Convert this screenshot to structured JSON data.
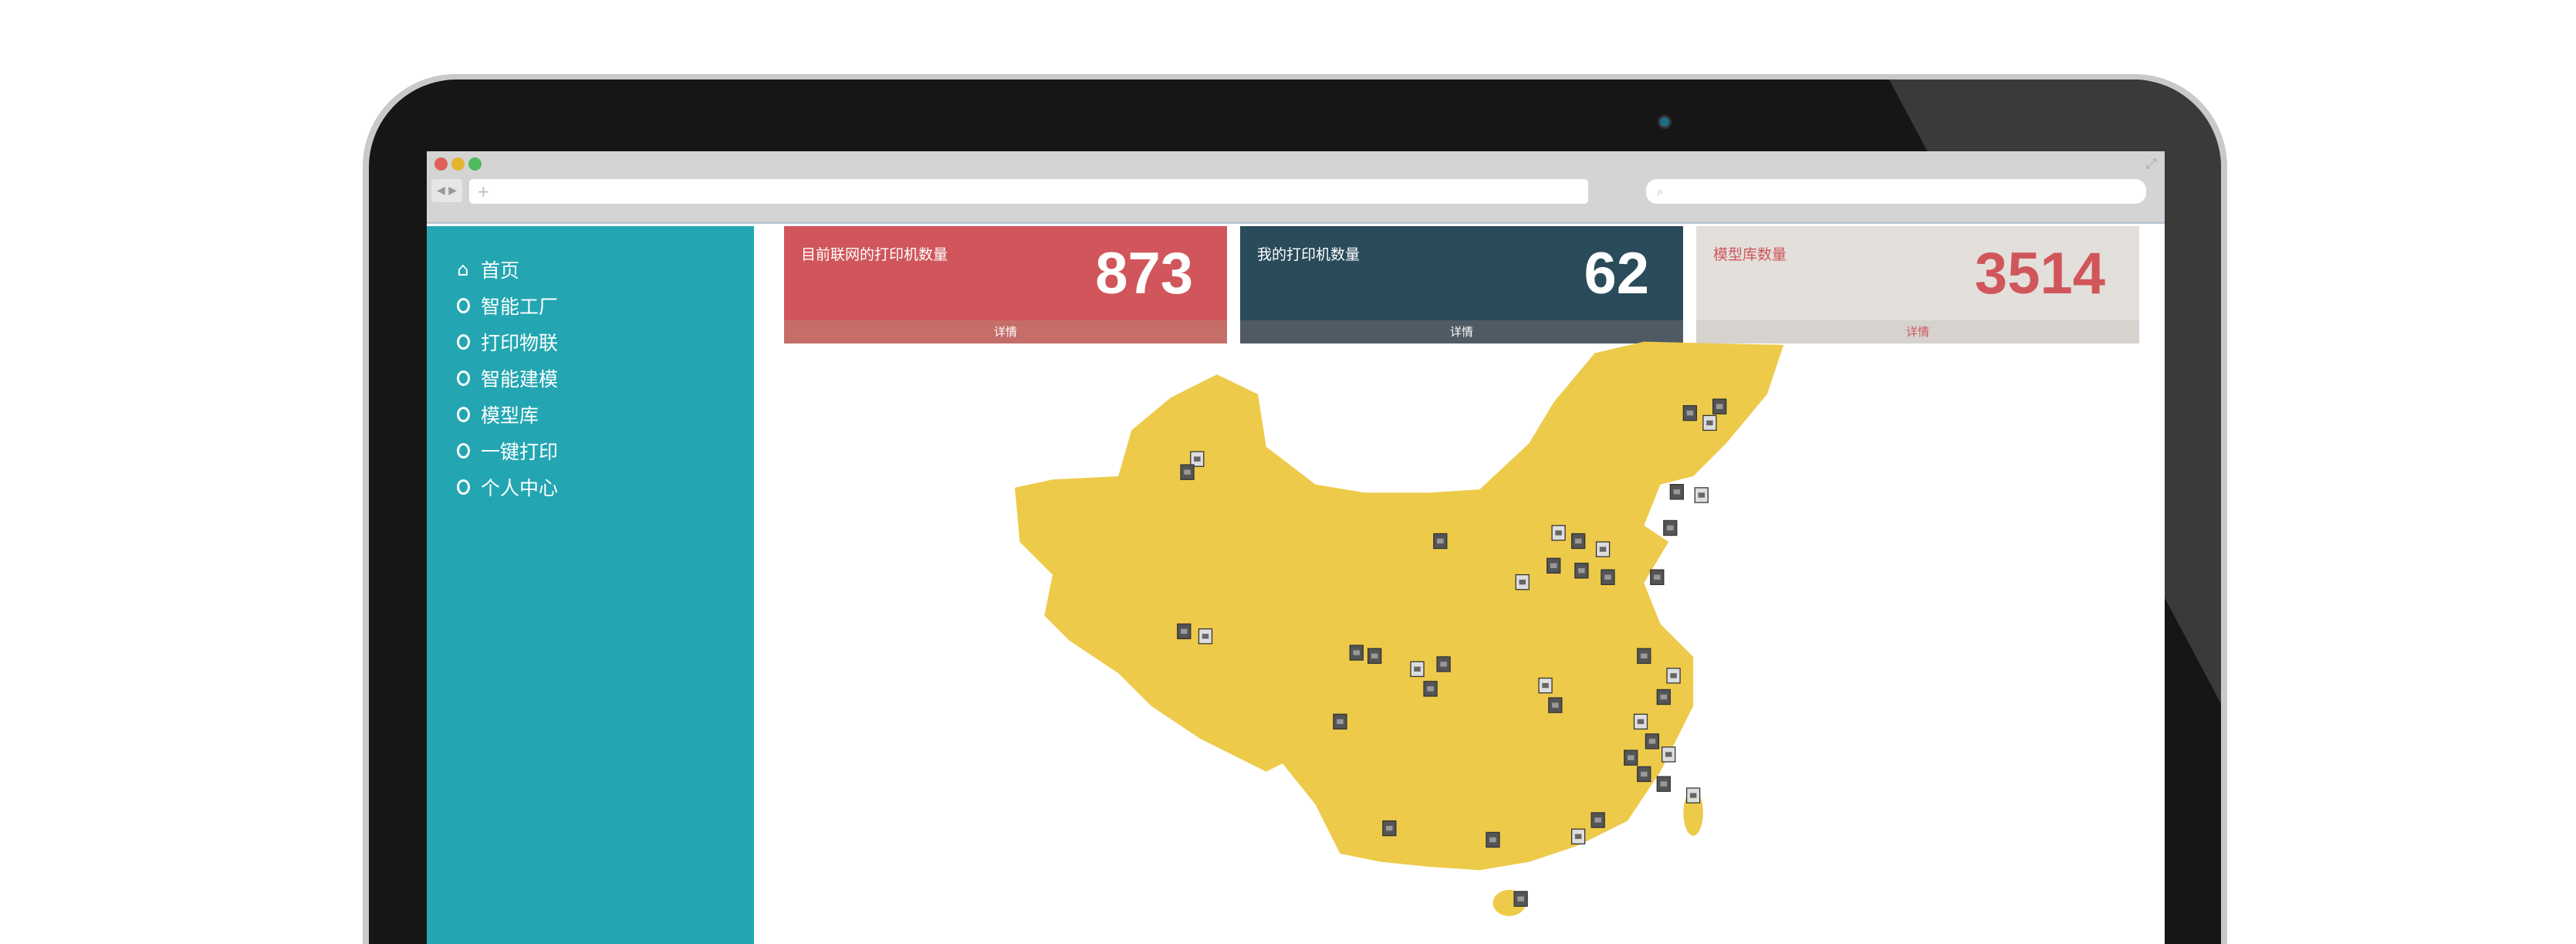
{
  "browser": {
    "url_placeholder": "+",
    "search_icon": "search-icon",
    "window_dots": [
      "#e0605a",
      "#e3b531",
      "#4fbb5d"
    ]
  },
  "sidebar": {
    "items": [
      {
        "label": "首页",
        "icon": "home-icon"
      },
      {
        "label": "智能工厂",
        "icon": "circle-icon"
      },
      {
        "label": "打印物联",
        "icon": "circle-icon"
      },
      {
        "label": "智能建模",
        "icon": "circle-icon"
      },
      {
        "label": "模型库",
        "icon": "circle-icon"
      },
      {
        "label": "一键打印",
        "icon": "circle-icon"
      },
      {
        "label": "个人中心",
        "icon": "circle-icon"
      }
    ]
  },
  "cards": [
    {
      "label": "目前联网的打印机数量",
      "value": "873",
      "footer": "详情",
      "bg": "#d0565b",
      "footer_bg": "#c56d69",
      "color": "#ffffff"
    },
    {
      "label": "我的打印机数量",
      "value": "62",
      "footer": "详情",
      "bg": "#2a4b5a",
      "footer_bg": "#4f5a65",
      "color": "#ffffff"
    },
    {
      "label": "模型库数量",
      "value": "3514",
      "footer": "详情",
      "bg": "#e3dfdb",
      "footer_bg": "#d6d2ce",
      "color": "#d0565b"
    }
  ],
  "map": {
    "fill": "#edca4a",
    "marker_icon": "printer-icon"
  }
}
